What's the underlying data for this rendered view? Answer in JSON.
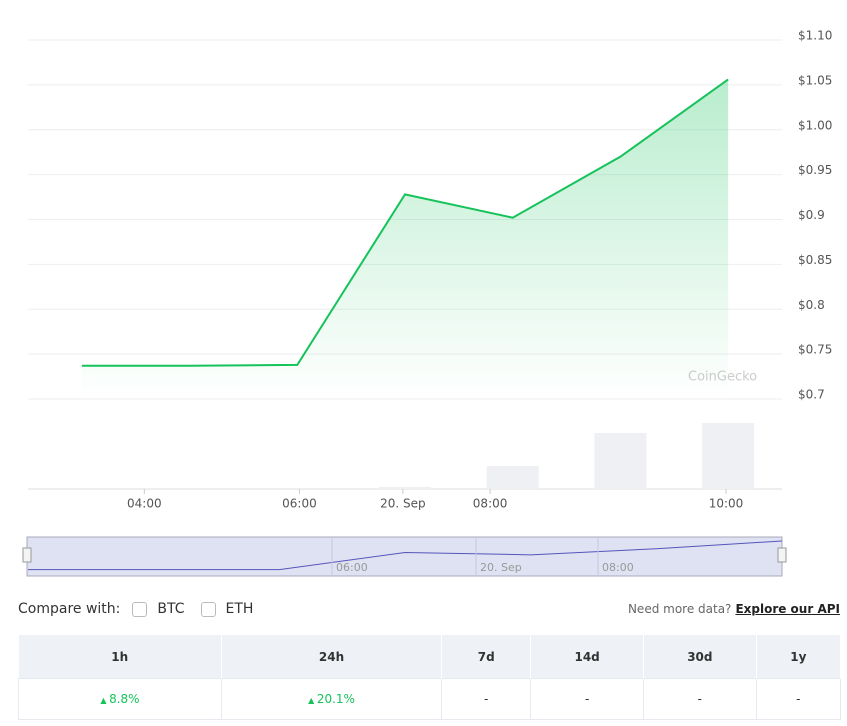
{
  "chart_data": {
    "type": "line",
    "x": [
      0,
      1,
      2,
      3,
      4,
      5,
      6
    ],
    "series": [
      {
        "name": "Price",
        "color": "#16c25a",
        "values": [
          0.737,
          0.737,
          0.738,
          0.928,
          0.902,
          0.97,
          1.056
        ]
      }
    ],
    "volumes": [
      0,
      0,
      0,
      2,
      23,
      56,
      66
    ],
    "volume_color": "#eef0f3",
    "volume_lim": [
      0,
      100
    ],
    "xlim": [
      -0.5,
      6.5
    ],
    "xticks": [
      {
        "value": 0.58,
        "label": "04:00"
      },
      {
        "value": 2.02,
        "label": "06:00"
      },
      {
        "value": 2.98,
        "label": "20. Sep"
      },
      {
        "value": 3.79,
        "label": "08:00"
      },
      {
        "value": 5.98,
        "label": "10:00"
      }
    ],
    "ylim": [
      0.7,
      1.1
    ],
    "yticks": [
      {
        "value": 1.1,
        "label": "$1.10"
      },
      {
        "value": 1.05,
        "label": "$1.05"
      },
      {
        "value": 1.0,
        "label": "$1.00"
      },
      {
        "value": 0.95,
        "label": "$0.95"
      },
      {
        "value": 0.9,
        "label": "$0.9"
      },
      {
        "value": 0.85,
        "label": "$0.85"
      },
      {
        "value": 0.8,
        "label": "$0.8"
      },
      {
        "value": 0.75,
        "label": "$0.75"
      },
      {
        "value": 0.7,
        "label": "$0.7"
      }
    ],
    "grid": true,
    "watermark": "CoinGecko",
    "navigator_labels": [
      "06:00",
      "20. Sep",
      "08:00"
    ]
  },
  "compare": {
    "label": "Compare with:",
    "options": [
      "BTC",
      "ETH"
    ],
    "prompt": "Need more data?",
    "link": "Explore our API"
  },
  "table": {
    "headers": [
      "1h",
      "24h",
      "7d",
      "14d",
      "30d",
      "1y"
    ],
    "rows": [
      [
        "8.8%",
        "20.1%",
        "-",
        "-",
        "-",
        "-"
      ]
    ]
  }
}
